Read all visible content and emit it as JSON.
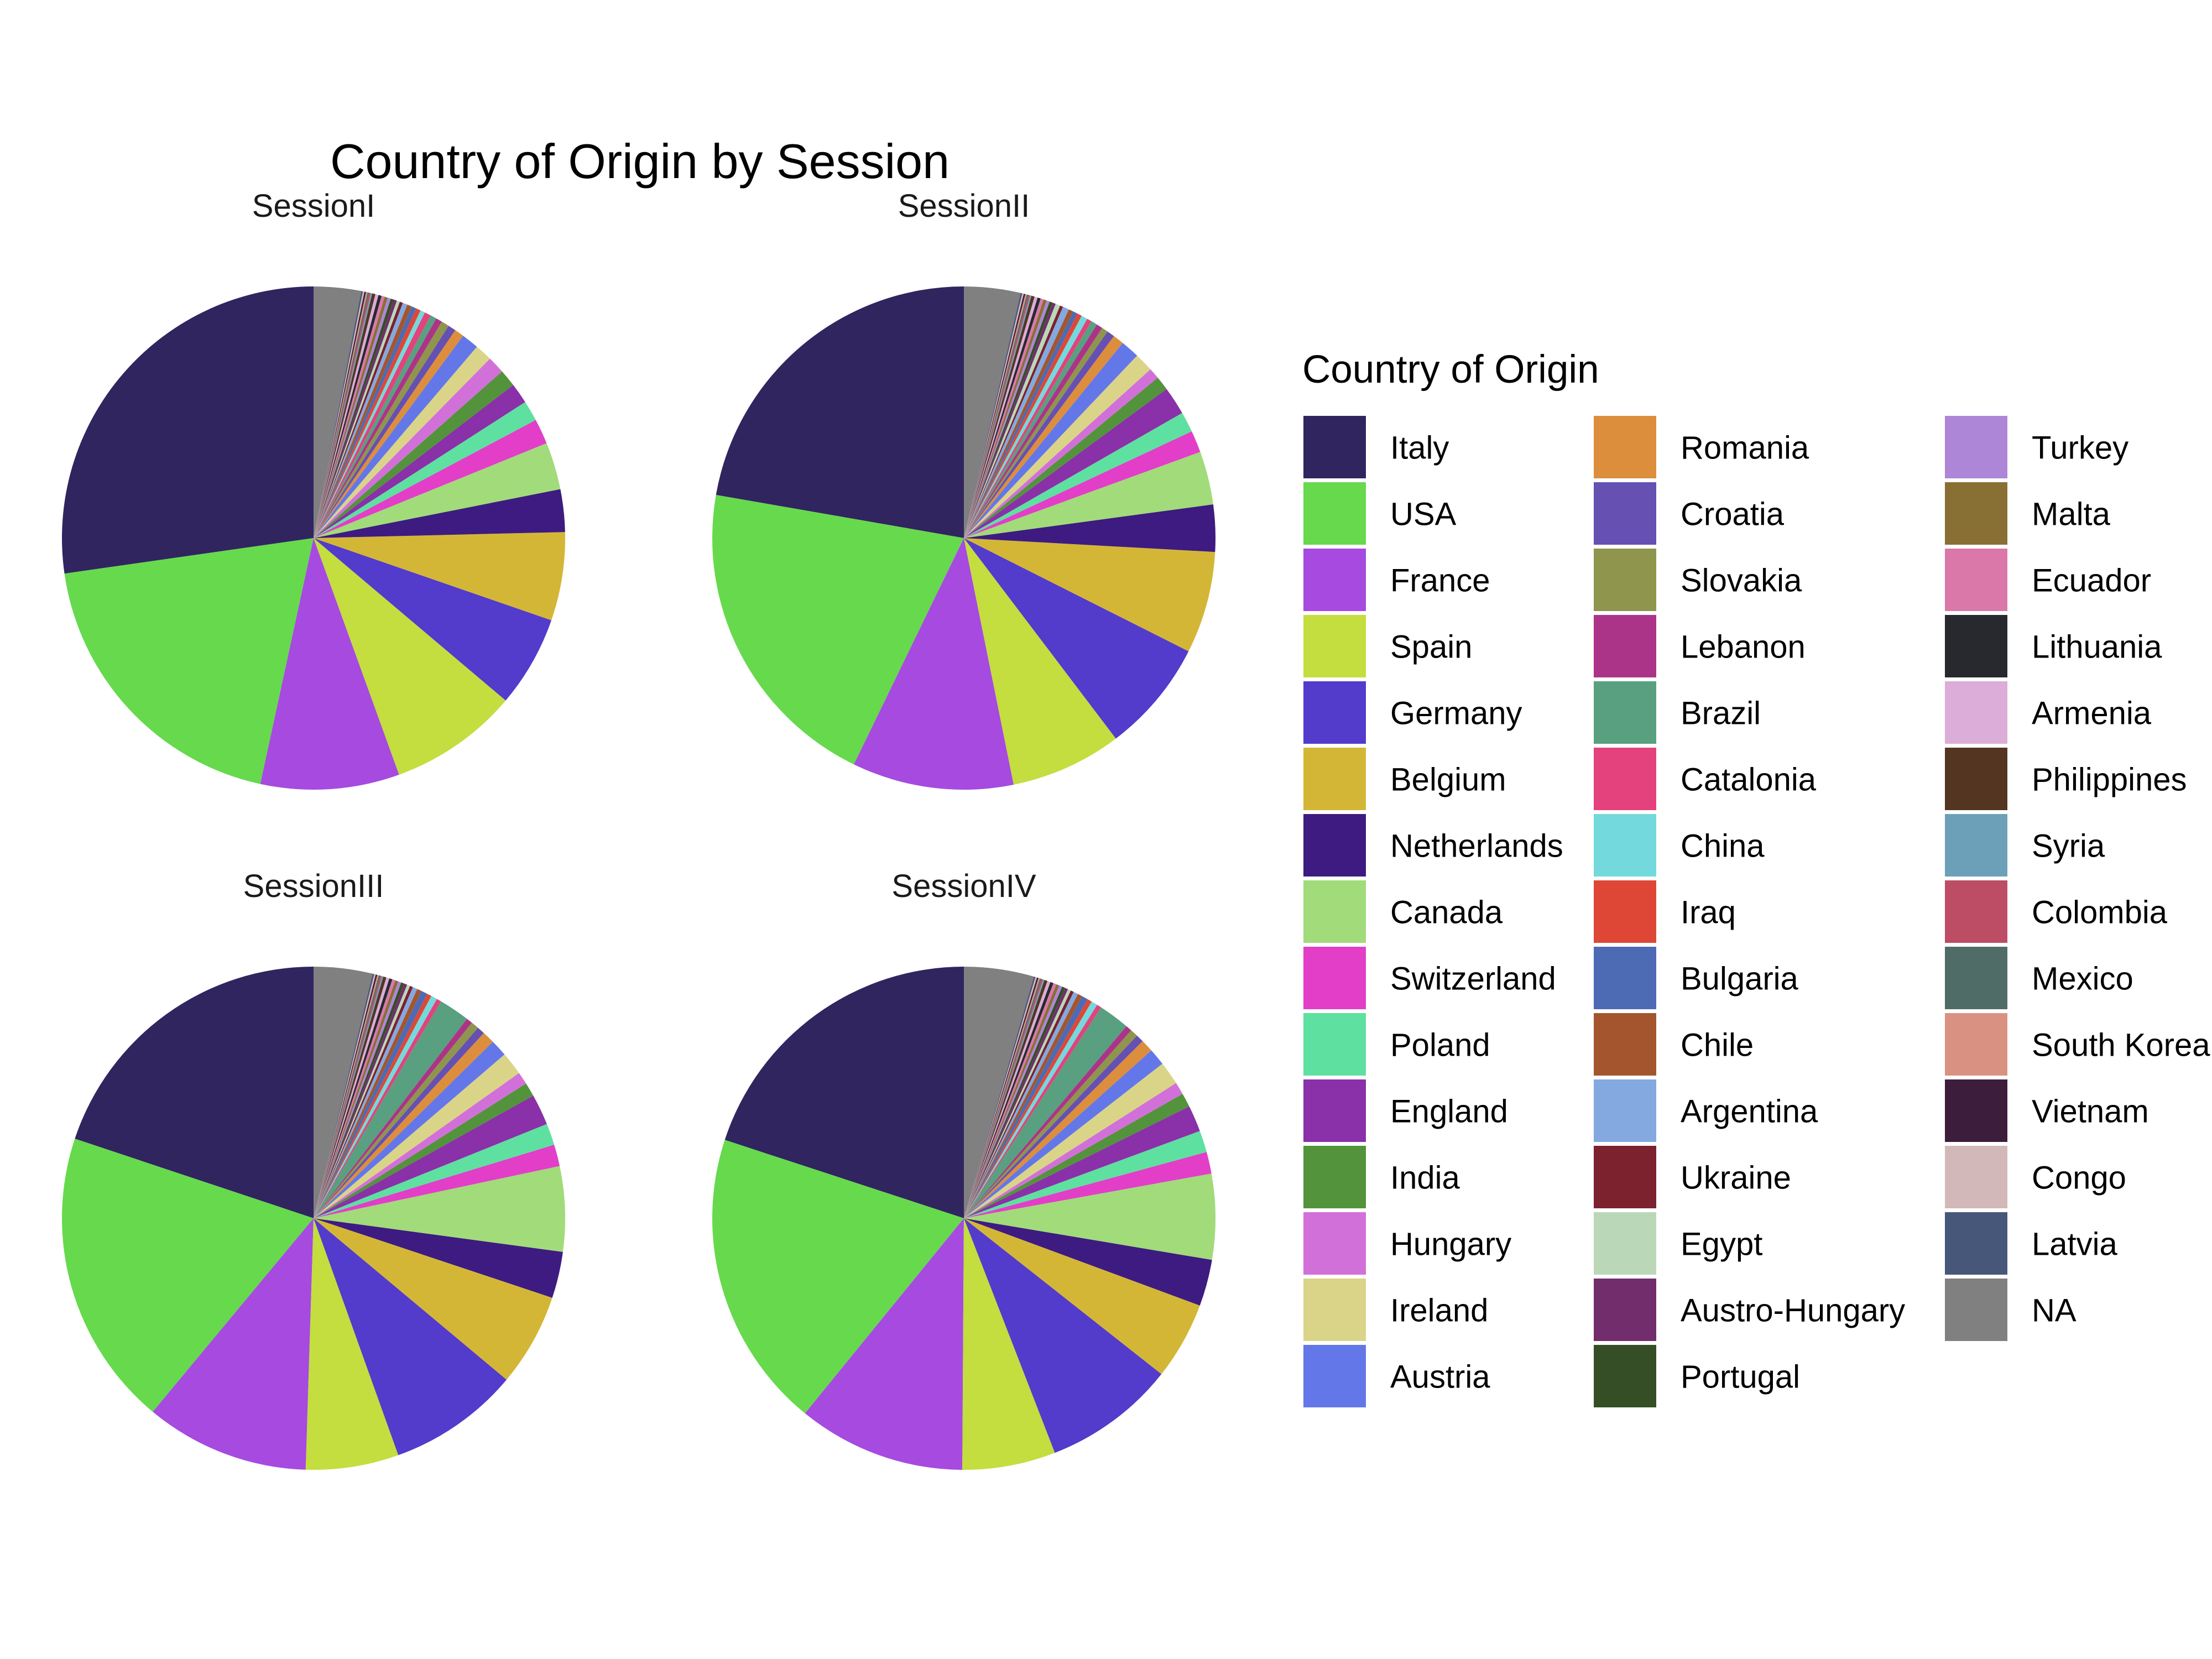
{
  "chart_data": {
    "type": "pie",
    "title": "Country of Origin by Session",
    "legend": {
      "title": "Country of Origin",
      "position": "right"
    },
    "categories": [
      "Italy",
      "USA",
      "France",
      "Spain",
      "Germany",
      "Belgium",
      "Netherlands",
      "Canada",
      "Switzerland",
      "Poland",
      "England",
      "India",
      "Hungary",
      "Ireland",
      "Austria",
      "Romania",
      "Croatia",
      "Slovakia",
      "Lebanon",
      "Brazil",
      "Catalonia",
      "China",
      "Iraq",
      "Bulgaria",
      "Chile",
      "Argentina",
      "Ukraine",
      "Egypt",
      "Austro-Hungary",
      "Portugal",
      "Turkey",
      "Malta",
      "Ecuador",
      "Lithuania",
      "Armenia",
      "Philippines",
      "Syria",
      "Colombia",
      "Mexico",
      "South Korea",
      "Vietnam",
      "Congo",
      "Latvia",
      "NA"
    ],
    "colors": [
      "#30255f",
      "#66d94d",
      "#a64ae0",
      "#c3de3e",
      "#533bcb",
      "#d4b636",
      "#3e1b80",
      "#a1db7a",
      "#e23ec8",
      "#5ee0a0",
      "#8a30a8",
      "#53933c",
      "#d270d9",
      "#dad488",
      "#6477e8",
      "#dc8e3c",
      "#6650b2",
      "#8f954c",
      "#ab3489",
      "#58a07f",
      "#e3427d",
      "#74d9dc",
      "#de4736",
      "#4c6bb4",
      "#a4552d",
      "#84a9e0",
      "#7c212e",
      "#bad8b8",
      "#722e6c",
      "#364e26",
      "#ad86d8",
      "#886f34",
      "#da78aa",
      "#28292f",
      "#dbadd8",
      "#533522",
      "#6ba0b8",
      "#bd4d64",
      "#4f6d66",
      "#d99282",
      "#3c1d3b",
      "#d2b8b9",
      "#475779",
      "#808080"
    ],
    "panels": [
      {
        "name": "SessionI",
        "values": [
          26.9,
          19.1,
          8.8,
          8.2,
          5.8,
          5.6,
          2.7,
          3.0,
          1.6,
          1.3,
          1.3,
          1.1,
          1.1,
          1.1,
          1.1,
          0.6,
          0.5,
          0.5,
          0.4,
          0.4,
          0.4,
          0.3,
          0.3,
          0.3,
          0.3,
          0.3,
          0.2,
          0.2,
          0.2,
          0.2,
          0.2,
          0.2,
          0.2,
          0.2,
          0.2,
          0.2,
          0.1,
          0.1,
          0.1,
          0.1,
          0.1,
          0.1,
          0.1,
          3.0
        ]
      },
      {
        "name": "SessionII",
        "values": [
          22.1,
          20.4,
          10.3,
          7.1,
          7.2,
          6.5,
          3.0,
          3.4,
          1.4,
          1.3,
          1.8,
          0.9,
          0.7,
          1.2,
          1.2,
          0.7,
          0.5,
          0.4,
          0.4,
          0.4,
          0.3,
          0.4,
          0.3,
          0.3,
          0.3,
          0.4,
          0.2,
          0.3,
          0.2,
          0.2,
          0.2,
          0.2,
          0.2,
          0.2,
          0.2,
          0.2,
          0.1,
          0.1,
          0.1,
          0.1,
          0.1,
          0.1,
          0.1,
          3.6
        ]
      },
      {
        "name": "SessionIII",
        "values": [
          20.0,
          19.2,
          10.6,
          6.0,
          8.5,
          6.0,
          3.0,
          5.5,
          1.4,
          1.4,
          2.0,
          0.9,
          0.8,
          1.5,
          1.1,
          0.8,
          0.5,
          0.5,
          0.4,
          2.0,
          0.3,
          0.4,
          0.3,
          0.4,
          0.3,
          0.3,
          0.2,
          0.2,
          0.2,
          0.2,
          0.2,
          0.2,
          0.2,
          0.2,
          0.2,
          0.2,
          0.1,
          0.1,
          0.1,
          0.1,
          0.1,
          0.1,
          0.1,
          3.8
        ]
      },
      {
        "name": "SessionIV",
        "values": [
          20.0,
          19.2,
          10.8,
          6.0,
          8.5,
          5.0,
          3.0,
          5.5,
          1.4,
          1.4,
          1.7,
          0.9,
          0.8,
          1.5,
          1.1,
          0.8,
          0.5,
          0.5,
          0.4,
          2.0,
          0.3,
          0.4,
          0.3,
          0.4,
          0.3,
          0.3,
          0.2,
          0.2,
          0.2,
          0.2,
          0.2,
          0.2,
          0.2,
          0.2,
          0.2,
          0.2,
          0.1,
          0.1,
          0.1,
          0.1,
          0.1,
          0.1,
          0.1,
          4.5
        ]
      }
    ]
  }
}
